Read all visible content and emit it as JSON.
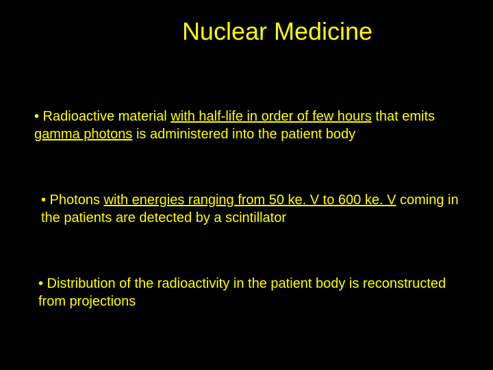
{
  "slide": {
    "background_color": "#000000",
    "text_color": "#ffff00",
    "title_fontsize": 36,
    "body_fontsize": 20,
    "font_family": "Arial"
  },
  "title": "Nuclear Medicine",
  "bullets": {
    "b1": {
      "pre": "• Radioactive material ",
      "u1": "with half-life in order of few hours",
      "mid": " that emits ",
      "u2": "gamma photons",
      "post": " is administered into the patient body"
    },
    "b2": {
      "pre": " • Photons ",
      "u1": "with energies ranging from 50 ke. V to 600 ke. V",
      "post": " coming in the patients are detected by a scintillator"
    },
    "b3": {
      "text": "• Distribution of the radioactivity in the patient body is reconstructed from projections"
    }
  }
}
